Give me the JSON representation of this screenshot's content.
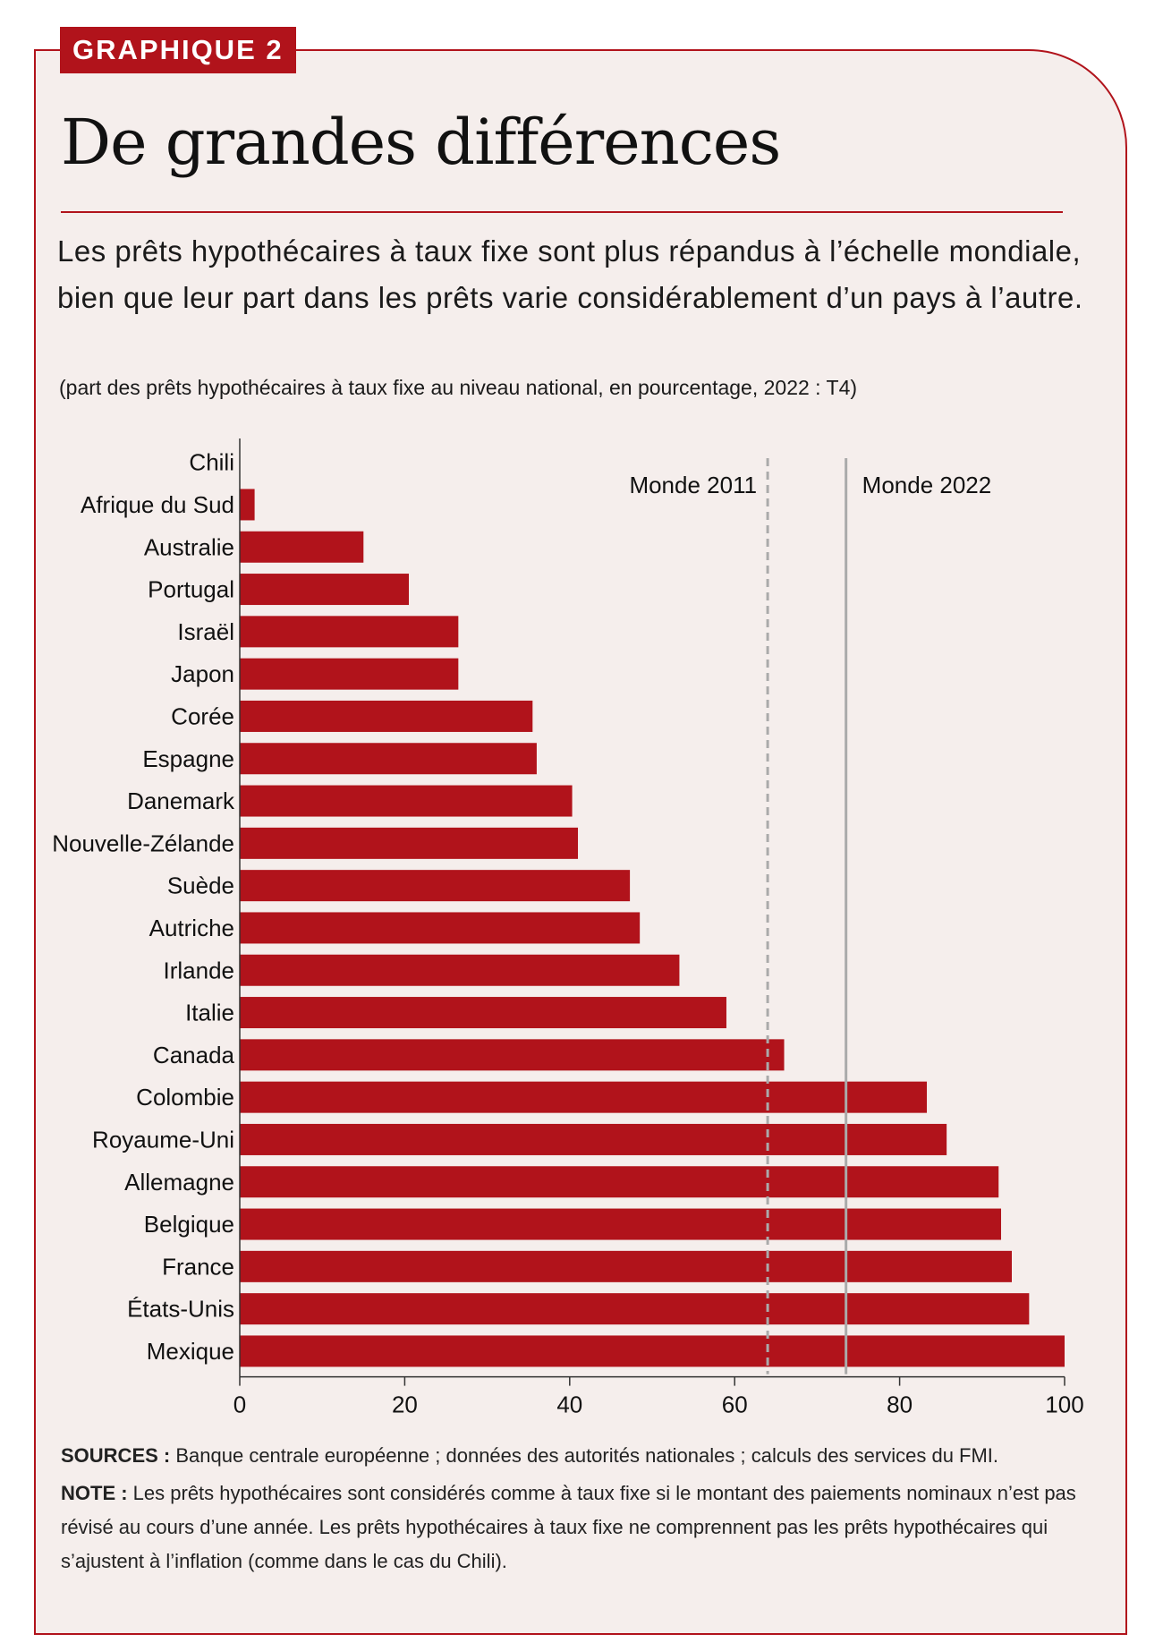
{
  "header": {
    "tag": "GRAPHIQUE 2",
    "title": "De grandes différences",
    "subtitle": "Les prêts hypothécaires à taux fixe sont plus répandus à l’échelle mondiale, bien que leur part dans les prêts varie considérablement d’un pays à l’autre.",
    "units": "(part des prêts hypothécaires à taux fixe au niveau national, en pourcentage, 2022 : T4)"
  },
  "colors": {
    "accent": "#b1131b",
    "background": "#f5eeec",
    "reference_line": "#aaaaaa"
  },
  "chart_data": {
    "type": "bar",
    "orientation": "horizontal",
    "categories": [
      "Chili",
      "Afrique du Sud",
      "Australie",
      "Portugal",
      "Israël",
      "Japon",
      "Corée",
      "Espagne",
      "Danemark",
      "Nouvelle-Zélande",
      "Suède",
      "Autriche",
      "Irlande",
      "Italie",
      "Canada",
      "Colombie",
      "Royaume-Uni",
      "Allemagne",
      "Belgique",
      "France",
      "États-Unis",
      "Mexique"
    ],
    "values": [
      0,
      1.8,
      15,
      20.5,
      26.5,
      26.5,
      35.5,
      36,
      40.3,
      41,
      47.3,
      48.5,
      53.3,
      59,
      66,
      83.3,
      85.7,
      92,
      92.3,
      93.6,
      95.7,
      100
    ],
    "xlim": [
      0,
      100
    ],
    "xticks": [
      0,
      20,
      40,
      60,
      80,
      100
    ],
    "xtick_labels": [
      "0",
      "20",
      "40",
      "60",
      "80",
      "100"
    ],
    "reference_lines": [
      {
        "label": "Monde 2011",
        "value": 64,
        "style": "dashed"
      },
      {
        "label": "Monde 2022",
        "value": 73.5,
        "style": "solid"
      }
    ],
    "grid": false,
    "legend": "none"
  },
  "footer": {
    "sources_label": "SOURCES :",
    "sources_text": " Banque centrale européenne ; données des autorités nationales ; calculs des services du FMI.",
    "note_label": "NOTE :",
    "note_text": " Les prêts hypothécaires sont considérés comme à taux fixe si le montant des paiements nominaux n’est pas révisé au cours d’une année. Les prêts hypothécaires à taux fixe ne comprennent pas les prêts hypothécaires qui s’ajustent à l’inflation (comme dans le cas du Chili)."
  }
}
